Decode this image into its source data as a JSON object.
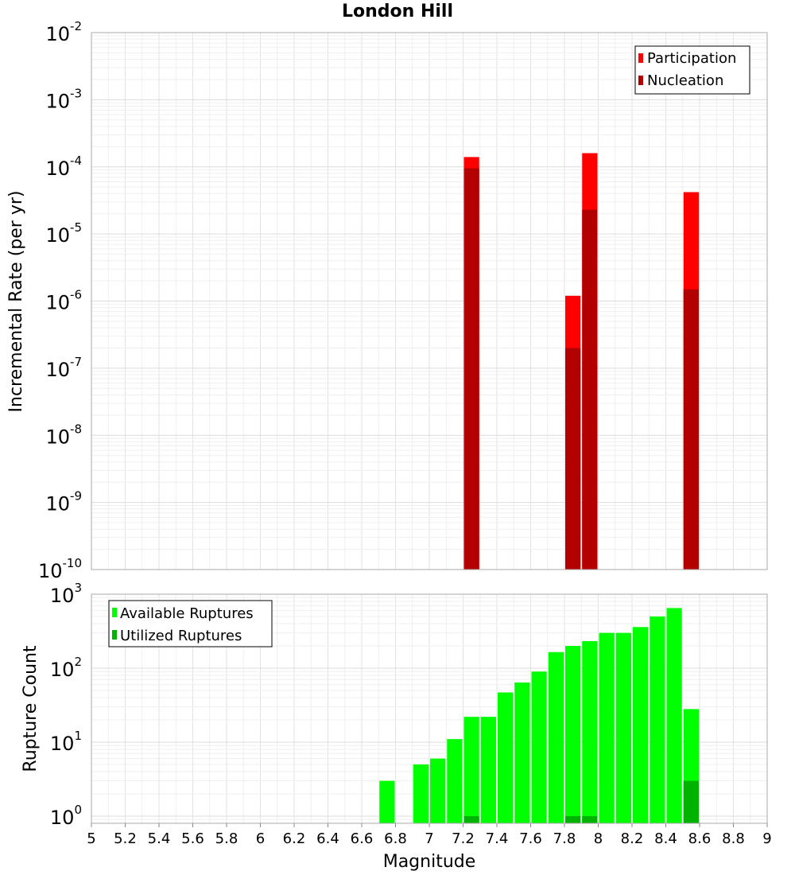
{
  "title": "London Hill",
  "chart_data": [
    {
      "type": "bar",
      "panel": "top",
      "ylabel": "Incremental Rate (per yr)",
      "yscale": "log",
      "ylim": [
        1e-10,
        0.01
      ],
      "xlim": [
        5,
        9
      ],
      "y_tick_labels": [
        {
          "base": "10",
          "exp": "-10",
          "value": 1e-10
        },
        {
          "base": "10",
          "exp": "-9",
          "value": 1e-09
        },
        {
          "base": "10",
          "exp": "-8",
          "value": 1e-08
        },
        {
          "base": "10",
          "exp": "-7",
          "value": 1e-07
        },
        {
          "base": "10",
          "exp": "-6",
          "value": 1e-06
        },
        {
          "base": "10",
          "exp": "-5",
          "value": 1e-05
        },
        {
          "base": "10",
          "exp": "-4",
          "value": 0.0001
        },
        {
          "base": "10",
          "exp": "-3",
          "value": 0.001
        },
        {
          "base": "10",
          "exp": "-2",
          "value": 0.01
        }
      ],
      "grid": true,
      "legend_position": "top-right",
      "series": [
        {
          "name": "Participation",
          "color": "#ff0000",
          "points": [
            {
              "x": 7.25,
              "y": 0.00014
            },
            {
              "x": 7.85,
              "y": 1.2e-06
            },
            {
              "x": 7.95,
              "y": 0.00016
            },
            {
              "x": 8.55,
              "y": 4.2e-05
            }
          ]
        },
        {
          "name": "Nucleation",
          "color": "#b30000",
          "points": [
            {
              "x": 7.25,
              "y": 9.5e-05
            },
            {
              "x": 7.85,
              "y": 2e-07
            },
            {
              "x": 7.95,
              "y": 2.3e-05
            },
            {
              "x": 8.55,
              "y": 1.5e-06
            }
          ]
        }
      ]
    },
    {
      "type": "bar",
      "panel": "bottom",
      "xlabel": "Magnitude",
      "ylabel": "Rupture Count",
      "yscale": "log",
      "ylim": [
        0.8,
        1000
      ],
      "xlim": [
        5,
        9
      ],
      "x_tick_labels": [
        "5",
        "5.2",
        "5.4",
        "5.6",
        "5.8",
        "6",
        "6.2",
        "6.4",
        "6.6",
        "6.8",
        "7",
        "7.2",
        "7.4",
        "7.6",
        "7.8",
        "8",
        "8.2",
        "8.4",
        "8.6",
        "8.8",
        "9"
      ],
      "y_tick_labels": [
        {
          "base": "10",
          "exp": "0",
          "value": 1
        },
        {
          "base": "10",
          "exp": "1",
          "value": 10
        },
        {
          "base": "10",
          "exp": "2",
          "value": 100
        },
        {
          "base": "10",
          "exp": "3",
          "value": 1000
        }
      ],
      "grid": true,
      "legend_position": "top-left",
      "series": [
        {
          "name": "Available Ruptures",
          "color": "#00ff00",
          "points": [
            {
              "x": 6.75,
              "y": 3
            },
            {
              "x": 6.95,
              "y": 5
            },
            {
              "x": 7.05,
              "y": 6
            },
            {
              "x": 7.15,
              "y": 11
            },
            {
              "x": 7.25,
              "y": 22
            },
            {
              "x": 7.35,
              "y": 22
            },
            {
              "x": 7.45,
              "y": 47
            },
            {
              "x": 7.55,
              "y": 64
            },
            {
              "x": 7.65,
              "y": 90
            },
            {
              "x": 7.75,
              "y": 165
            },
            {
              "x": 7.85,
              "y": 200
            },
            {
              "x": 7.95,
              "y": 232
            },
            {
              "x": 8.05,
              "y": 300
            },
            {
              "x": 8.15,
              "y": 300
            },
            {
              "x": 8.25,
              "y": 360
            },
            {
              "x": 8.35,
              "y": 500
            },
            {
              "x": 8.45,
              "y": 650
            },
            {
              "x": 8.55,
              "y": 28
            }
          ]
        },
        {
          "name": "Utilized Ruptures",
          "color": "#00b300",
          "points": [
            {
              "x": 7.25,
              "y": 1
            },
            {
              "x": 7.85,
              "y": 1
            },
            {
              "x": 7.95,
              "y": 1
            },
            {
              "x": 8.55,
              "y": 3
            }
          ]
        }
      ]
    }
  ]
}
